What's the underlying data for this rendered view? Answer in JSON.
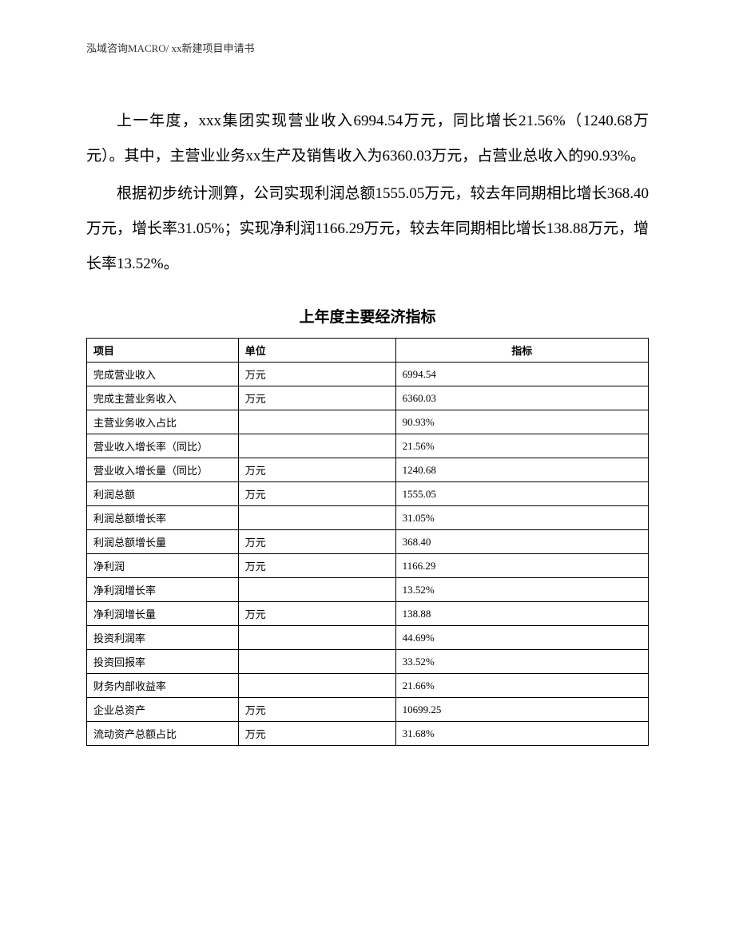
{
  "header": {
    "text": "泓域咨询MACRO/   xx新建项目申请书"
  },
  "paragraphs": [
    "上一年度，xxx集团实现营业收入6994.54万元，同比增长21.56%（1240.68万元）。其中，主营业业务xx生产及销售收入为6360.03万元，占营业总收入的90.93%。",
    "根据初步统计测算，公司实现利润总额1555.05万元，较去年同期相比增长368.40万元，增长率31.05%；实现净利润1166.29万元，较去年同期相比增长138.88万元，增长率13.52%。"
  ],
  "table": {
    "title": "上年度主要经济指标",
    "columns": [
      "项目",
      "单位",
      "指标"
    ],
    "rows": [
      [
        "完成营业收入",
        "万元",
        "6994.54"
      ],
      [
        "完成主营业务收入",
        "万元",
        "6360.03"
      ],
      [
        "主营业务收入占比",
        "",
        "90.93%"
      ],
      [
        "营业收入增长率（同比）",
        "",
        "21.56%"
      ],
      [
        "营业收入增长量（同比）",
        "万元",
        "1240.68"
      ],
      [
        "利润总额",
        "万元",
        "1555.05"
      ],
      [
        "利润总额增长率",
        "",
        "31.05%"
      ],
      [
        "利润总额增长量",
        "万元",
        "368.40"
      ],
      [
        "净利润",
        "万元",
        "1166.29"
      ],
      [
        "净利润增长率",
        "",
        "13.52%"
      ],
      [
        "净利润增长量",
        "万元",
        "138.88"
      ],
      [
        "投资利润率",
        "",
        "44.69%"
      ],
      [
        "投资回报率",
        "",
        "33.52%"
      ],
      [
        "财务内部收益率",
        "",
        "21.66%"
      ],
      [
        "企业总资产",
        "万元",
        "10699.25"
      ],
      [
        "流动资产总额占比",
        "万元",
        "31.68%"
      ]
    ]
  }
}
